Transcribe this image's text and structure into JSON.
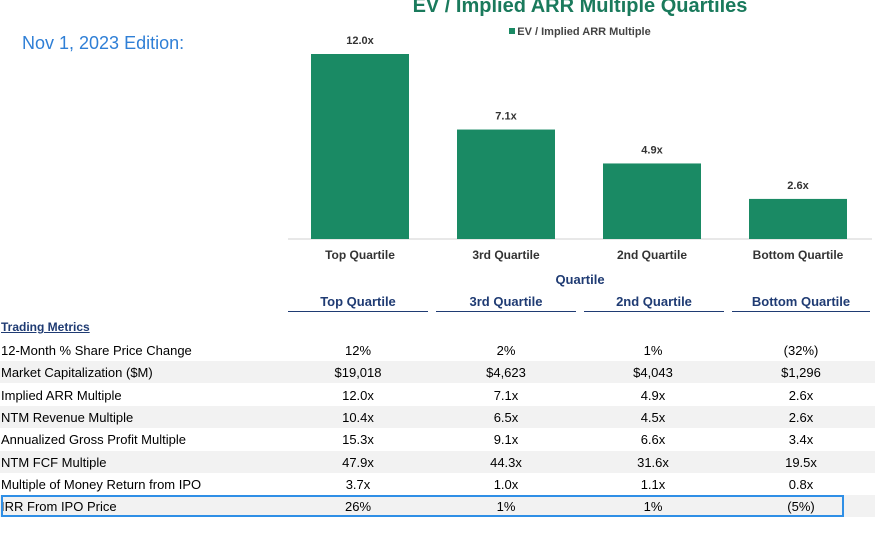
{
  "edition": "Nov 1, 2023 Edition:",
  "chart_data": {
    "type": "bar",
    "title": "EV / Implied ARR Multiple Quartiles",
    "series": [
      {
        "name": "EV / Implied ARR Multiple",
        "values": [
          12.0,
          7.1,
          4.9,
          2.6
        ]
      }
    ],
    "categories": [
      "Top Quartile",
      "3rd Quartile",
      "2nd Quartile",
      "Bottom Quartile"
    ],
    "data_labels": [
      "12.0x",
      "7.1x",
      "4.9x",
      "2.6x"
    ],
    "xlabel": "Quartile",
    "ylabel": "",
    "ylim": [
      0,
      12.0
    ],
    "grid": false,
    "legend_position": "top-center",
    "bar_color": "#1a8a64"
  },
  "table": {
    "section_label": "Trading Metrics",
    "columns": [
      "Top Quartile",
      "3rd Quartile",
      "2nd Quartile",
      "Bottom Quartile"
    ],
    "rows": [
      {
        "label": "12-Month % Share Price Change",
        "values": [
          "12%",
          "2%",
          "1%",
          "(32%)"
        ]
      },
      {
        "label": "Market Capitalization ($M)",
        "values": [
          "$19,018",
          "$4,623",
          "$4,043",
          "$1,296"
        ]
      },
      {
        "label": "Implied ARR Multiple",
        "values": [
          "12.0x",
          "7.1x",
          "4.9x",
          "2.6x"
        ]
      },
      {
        "label": "NTM Revenue Multiple",
        "values": [
          "10.4x",
          "6.5x",
          "4.5x",
          "2.6x"
        ]
      },
      {
        "label": "Annualized Gross Profit Multiple",
        "values": [
          "15.3x",
          "9.1x",
          "6.6x",
          "3.4x"
        ]
      },
      {
        "label": "NTM FCF Multiple",
        "values": [
          "47.9x",
          "44.3x",
          "31.6x",
          "19.5x"
        ]
      },
      {
        "label": "Multiple of Money Return from IPO",
        "values": [
          "3.7x",
          "1.0x",
          "1.1x",
          "0.8x"
        ]
      },
      {
        "label": "IRR From IPO Price",
        "values": [
          "26%",
          "1%",
          "1%",
          "(5%)"
        ]
      }
    ]
  }
}
